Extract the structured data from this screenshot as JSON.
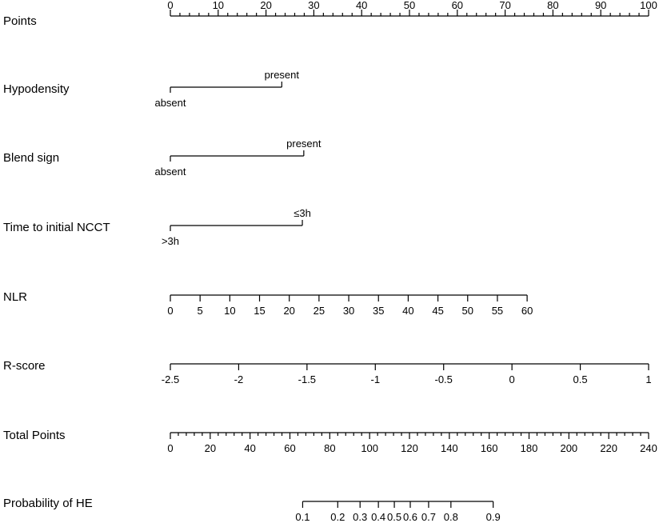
{
  "chart_data": {
    "type": "nomogram",
    "title": "",
    "rows": [
      {
        "key": "points",
        "label": "Points",
        "scale": "linear",
        "domain": [
          0,
          100
        ],
        "labels_position": "above",
        "major_ticks": [
          0,
          10,
          20,
          30,
          40,
          50,
          60,
          70,
          80,
          90,
          100
        ],
        "minor_step": 2
      },
      {
        "key": "hypodensity",
        "label": "Hypodensity",
        "scale": "categorical",
        "points_range": [
          0,
          23.3
        ],
        "categories": [
          {
            "label": "absent",
            "points": 0,
            "label_position": "below"
          },
          {
            "label": "present",
            "points": 23.3,
            "label_position": "above"
          }
        ]
      },
      {
        "key": "blend",
        "label": "Blend sign",
        "scale": "categorical",
        "points_range": [
          0,
          27.9
        ],
        "categories": [
          {
            "label": "absent",
            "points": 0,
            "label_position": "below"
          },
          {
            "label": "present",
            "points": 27.9,
            "label_position": "above"
          }
        ]
      },
      {
        "key": "time",
        "label": "Time to initial NCCT",
        "scale": "categorical",
        "points_range": [
          0,
          27.6
        ],
        "categories": [
          {
            "label": ">3h",
            "points": 0,
            "label_position": "below"
          },
          {
            "label": "≤3h",
            "points": 27.6,
            "label_position": "above"
          }
        ]
      },
      {
        "key": "nlr",
        "label": "NLR",
        "scale": "linear",
        "domain": [
          0,
          60
        ],
        "points_range": [
          0,
          74.6
        ],
        "labels_position": "below",
        "major_ticks": [
          0,
          5,
          10,
          15,
          20,
          25,
          30,
          35,
          40,
          45,
          50,
          55,
          60
        ]
      },
      {
        "key": "rscore",
        "label": "R-score",
        "scale": "linear",
        "domain": [
          -2.5,
          1
        ],
        "points_range": [
          0,
          100
        ],
        "labels_position": "below",
        "major_ticks": [
          -2.5,
          -2,
          -1.5,
          -1,
          -0.5,
          0,
          0.5,
          1
        ]
      },
      {
        "key": "total",
        "label": "Total Points",
        "scale": "linear",
        "domain": [
          0,
          240
        ],
        "labels_position": "below",
        "major_ticks": [
          0,
          20,
          40,
          60,
          80,
          100,
          120,
          140,
          160,
          180,
          200,
          220,
          240
        ],
        "minor_step": 4
      },
      {
        "key": "prob",
        "label": "Probability of HE",
        "scale": "mapped",
        "labels_position": "below",
        "major_ticks": [
          {
            "label": "0.1",
            "total_points": 66.4
          },
          {
            "label": "0.2",
            "total_points": 84
          },
          {
            "label": "0.3",
            "total_points": 95.2
          },
          {
            "label": "0.4",
            "total_points": 104.4
          },
          {
            "label": "0.5",
            "total_points": 112.4
          },
          {
            "label": "0.6",
            "total_points": 120.4
          },
          {
            "label": "0.7",
            "total_points": 129.6
          },
          {
            "label": "0.8",
            "total_points": 140.8
          },
          {
            "label": "0.9",
            "total_points": 162
          }
        ]
      }
    ]
  }
}
